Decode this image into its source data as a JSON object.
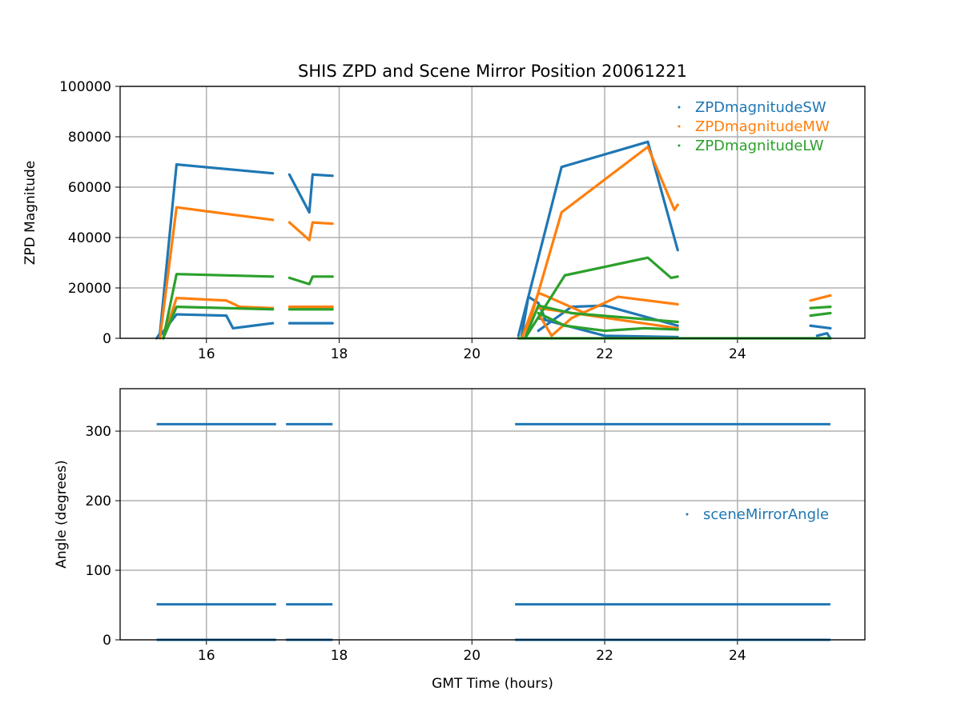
{
  "chart_data": [
    {
      "type": "scatter",
      "title": "SHIS ZPD and Scene Mirror Position 20061221",
      "xlabel": "",
      "ylabel": "ZPD Magnitude",
      "xlim": [
        14.7,
        25.92
      ],
      "ylim": [
        0,
        100000
      ],
      "xticks": [
        16,
        18,
        20,
        22,
        24
      ],
      "yticks": [
        0,
        20000,
        40000,
        60000,
        80000,
        100000
      ],
      "grid": true,
      "legend_position": "top-right",
      "series": [
        {
          "name": "ZPDmagnitudeSW",
          "color": "#1f77b4",
          "segments": [
            [
              [
                15.25,
                0
              ],
              [
                15.3,
                2000
              ],
              [
                15.55,
                69000
              ],
              [
                17.0,
                65500
              ]
            ],
            [
              [
                17.25,
                65000
              ],
              [
                17.55,
                50000
              ],
              [
                17.6,
                65000
              ],
              [
                17.9,
                64500
              ]
            ],
            [
              [
                20.7,
                1000
              ],
              [
                21.35,
                68000
              ],
              [
                22.65,
                78000
              ],
              [
                23.1,
                35000
              ]
            ],
            [
              [
                15.3,
                1000
              ],
              [
                15.55,
                9500
              ],
              [
                16.3,
                9000
              ],
              [
                16.4,
                4000
              ],
              [
                16.7,
                5000
              ],
              [
                17.0,
                6000
              ]
            ],
            [
              [
                17.25,
                6000
              ],
              [
                17.9,
                6000
              ]
            ],
            [
              [
                20.75,
                1000
              ],
              [
                20.85,
                16500
              ],
              [
                21.0,
                14000
              ],
              [
                21.1,
                8000
              ]
            ],
            [
              [
                21.0,
                3000
              ],
              [
                21.5,
                12500
              ],
              [
                22.0,
                13000
              ],
              [
                23.1,
                5000
              ]
            ],
            [
              [
                21.0,
                8000
              ],
              [
                22.0,
                1000
              ],
              [
                23.1,
                500
              ]
            ],
            [
              [
                25.1,
                5000
              ],
              [
                25.4,
                4000
              ]
            ],
            [
              [
                25.2,
                1000
              ],
              [
                25.35,
                2000
              ],
              [
                25.4,
                0
              ]
            ]
          ]
        },
        {
          "name": "ZPDmagnitudeMW",
          "color": "#ff7f0e",
          "segments": [
            [
              [
                15.3,
                0
              ],
              [
                15.55,
                52000
              ],
              [
                17.0,
                47000
              ]
            ],
            [
              [
                17.25,
                46000
              ],
              [
                17.55,
                39000
              ],
              [
                17.6,
                46000
              ],
              [
                17.9,
                45500
              ]
            ],
            [
              [
                20.8,
                0
              ],
              [
                21.35,
                50000
              ],
              [
                22.65,
                76000
              ],
              [
                23.05,
                51000
              ],
              [
                23.1,
                53000
              ]
            ],
            [
              [
                15.35,
                0
              ],
              [
                15.55,
                16000
              ],
              [
                16.3,
                15000
              ],
              [
                16.5,
                12500
              ],
              [
                17.0,
                12000
              ]
            ],
            [
              [
                17.25,
                12500
              ],
              [
                17.9,
                12500
              ]
            ],
            [
              [
                20.75,
                0
              ],
              [
                21.0,
                18000
              ],
              [
                21.1,
                17000
              ],
              [
                21.7,
                10000
              ]
            ],
            [
              [
                21.0,
                10000
              ],
              [
                21.2,
                1000
              ],
              [
                21.5,
                8000
              ],
              [
                22.2,
                16500
              ],
              [
                23.1,
                13500
              ]
            ],
            [
              [
                21.0,
                12000
              ],
              [
                23.1,
                4000
              ]
            ],
            [
              [
                25.1,
                15000
              ],
              [
                25.4,
                17000
              ]
            ]
          ]
        },
        {
          "name": "ZPDmagnitudeLW",
          "color": "#2ca02c",
          "segments": [
            [
              [
                15.35,
                0
              ],
              [
                15.55,
                25500
              ],
              [
                17.0,
                24500
              ]
            ],
            [
              [
                17.25,
                24000
              ],
              [
                17.55,
                21500
              ],
              [
                17.6,
                24500
              ],
              [
                17.9,
                24500
              ]
            ],
            [
              [
                20.8,
                0
              ],
              [
                21.4,
                25000
              ],
              [
                22.65,
                32000
              ],
              [
                23.0,
                24000
              ],
              [
                23.1,
                24500
              ]
            ],
            [
              [
                15.35,
                0
              ],
              [
                15.55,
                12500
              ],
              [
                17.0,
                11500
              ]
            ],
            [
              [
                17.25,
                11500
              ],
              [
                17.9,
                11500
              ]
            ],
            [
              [
                20.8,
                0
              ],
              [
                21.0,
                13000
              ],
              [
                21.5,
                10000
              ],
              [
                23.1,
                6500
              ]
            ],
            [
              [
                21.0,
                10000
              ],
              [
                21.4,
                5000
              ],
              [
                22.0,
                3000
              ],
              [
                22.6,
                4000
              ],
              [
                23.1,
                3500
              ]
            ],
            [
              [
                20.7,
                0
              ],
              [
                25.4,
                0
              ]
            ],
            [
              [
                25.1,
                12000
              ],
              [
                25.4,
                12500
              ]
            ],
            [
              [
                25.1,
                9000
              ],
              [
                25.4,
                10000
              ]
            ]
          ]
        }
      ]
    },
    {
      "type": "scatter",
      "title": "",
      "xlabel": "GMT Time (hours)",
      "ylabel": "Angle (degrees)",
      "xlim": [
        14.7,
        25.92
      ],
      "ylim": [
        0,
        361
      ],
      "xticks": [
        16,
        18,
        20,
        22,
        24
      ],
      "yticks": [
        0,
        100,
        200,
        300
      ],
      "grid": true,
      "legend_position": "center-right",
      "series": [
        {
          "name": "sceneMirrorAngle",
          "color": "#1f77b4",
          "levels": [
            310,
            51,
            0
          ],
          "ranges": [
            [
              15.25,
              17.05
            ],
            [
              17.2,
              17.9
            ],
            [
              20.65,
              25.4
            ]
          ]
        }
      ]
    }
  ]
}
